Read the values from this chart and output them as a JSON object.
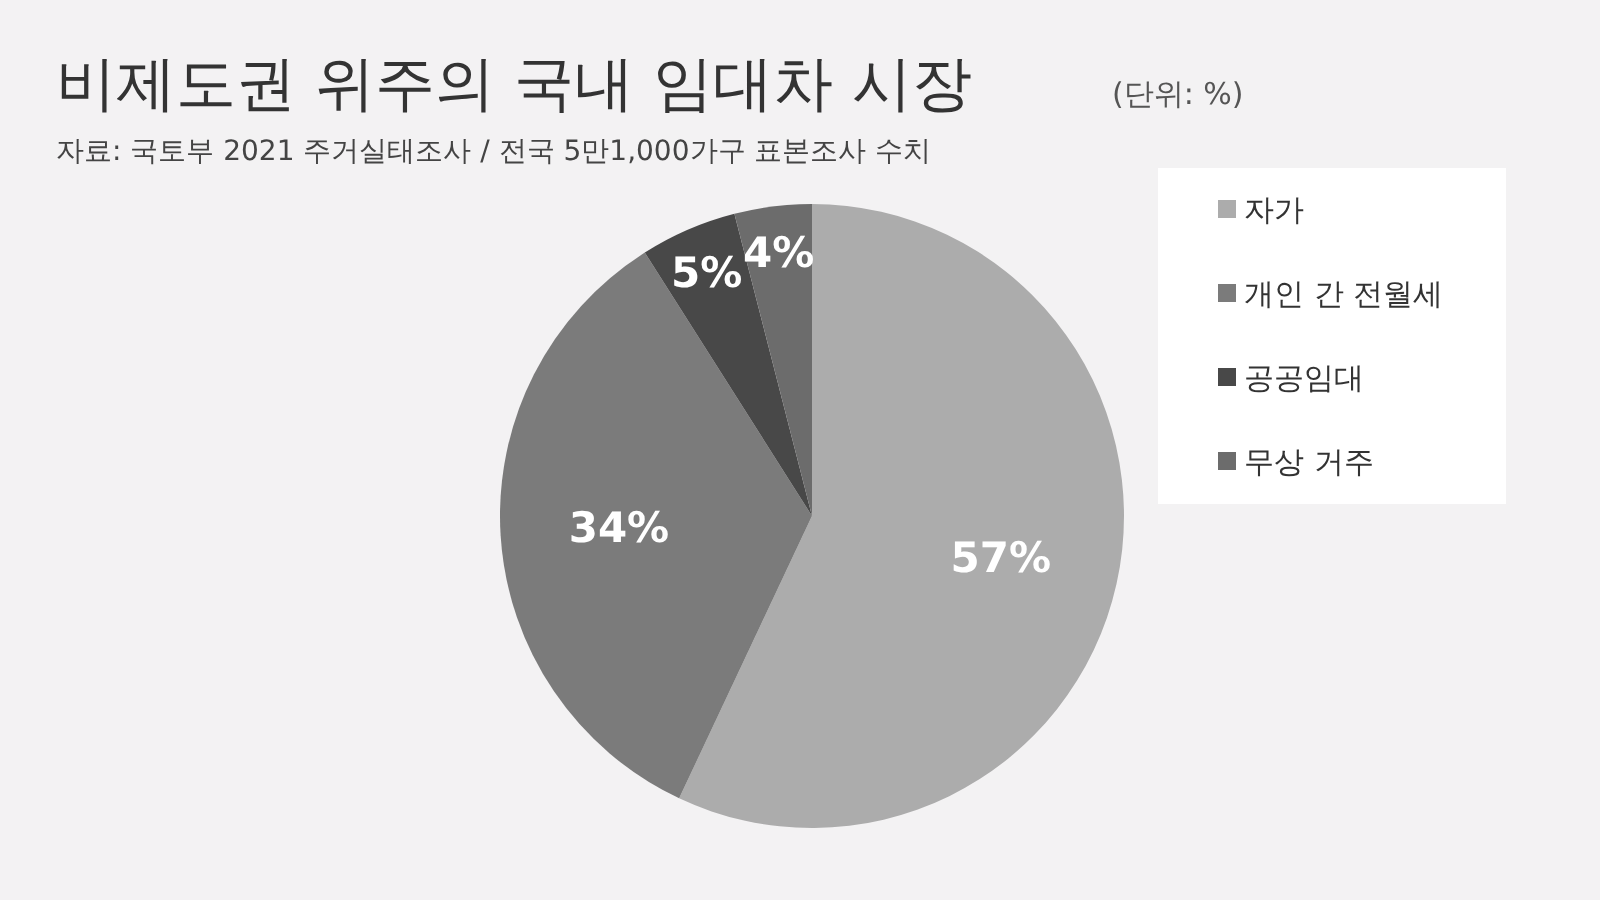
{
  "chart_data": {
    "type": "pie",
    "title": "비제도권 위주의 국내 임대차 시장",
    "subtitle": "자료: 국토부 2021 주거실태조사 / 전국 5만1,000가구 표본조사 수치",
    "annotations": [
      "(단위: %)"
    ],
    "categories": [
      "자가",
      "개인 간 전월세",
      "공공임대",
      "무상 거주"
    ],
    "values": [
      57,
      34,
      5,
      4
    ],
    "colors": [
      "#acacac",
      "#7b7b7b",
      "#484848",
      "#6c6c6c"
    ],
    "value_labels": [
      "57%",
      "34%",
      "5%",
      "4%"
    ],
    "legend": "right"
  }
}
